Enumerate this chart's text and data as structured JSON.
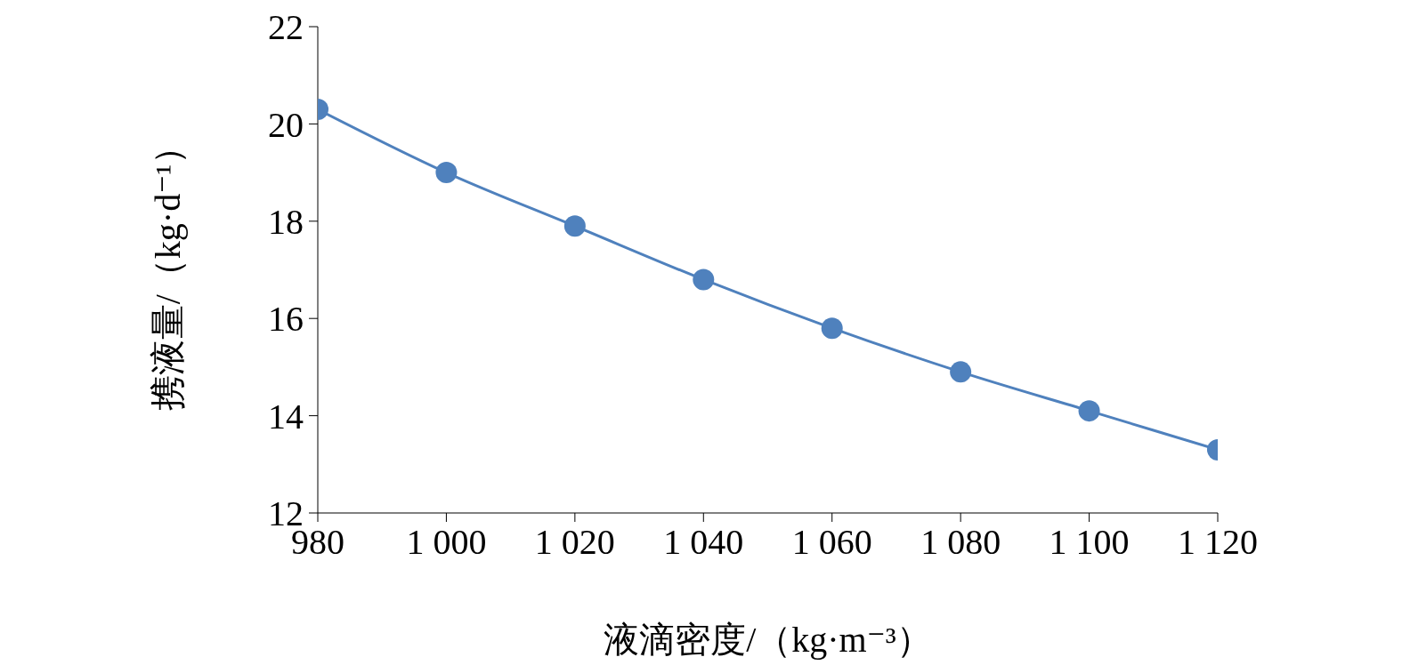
{
  "chart_data": {
    "type": "line",
    "xlabel": "液滴密度/（kg·m⁻³）",
    "ylabel": "携液量/（kg·d⁻¹）",
    "x": [
      980,
      1000,
      1020,
      1040,
      1060,
      1080,
      1100,
      1120
    ],
    "values": [
      20.3,
      19.0,
      17.9,
      16.8,
      15.8,
      14.9,
      14.1,
      13.3
    ],
    "color": "#4f81bd",
    "marker": "circle",
    "xlim": [
      980,
      1120
    ],
    "xticks": [
      980,
      {
        "value": 1000,
        "label": "1 000"
      },
      {
        "value": 1020,
        "label": "1 020"
      },
      {
        "value": 1040,
        "label": "1 040"
      },
      {
        "value": 1060,
        "label": "1 060"
      },
      {
        "value": 1080,
        "label": "1 080"
      },
      {
        "value": 1100,
        "label": "1 100"
      },
      {
        "value": 1120,
        "label": "1 120"
      }
    ],
    "ylim": [
      12,
      22
    ],
    "yticks": [
      12,
      14,
      16,
      18,
      20,
      22
    ]
  }
}
